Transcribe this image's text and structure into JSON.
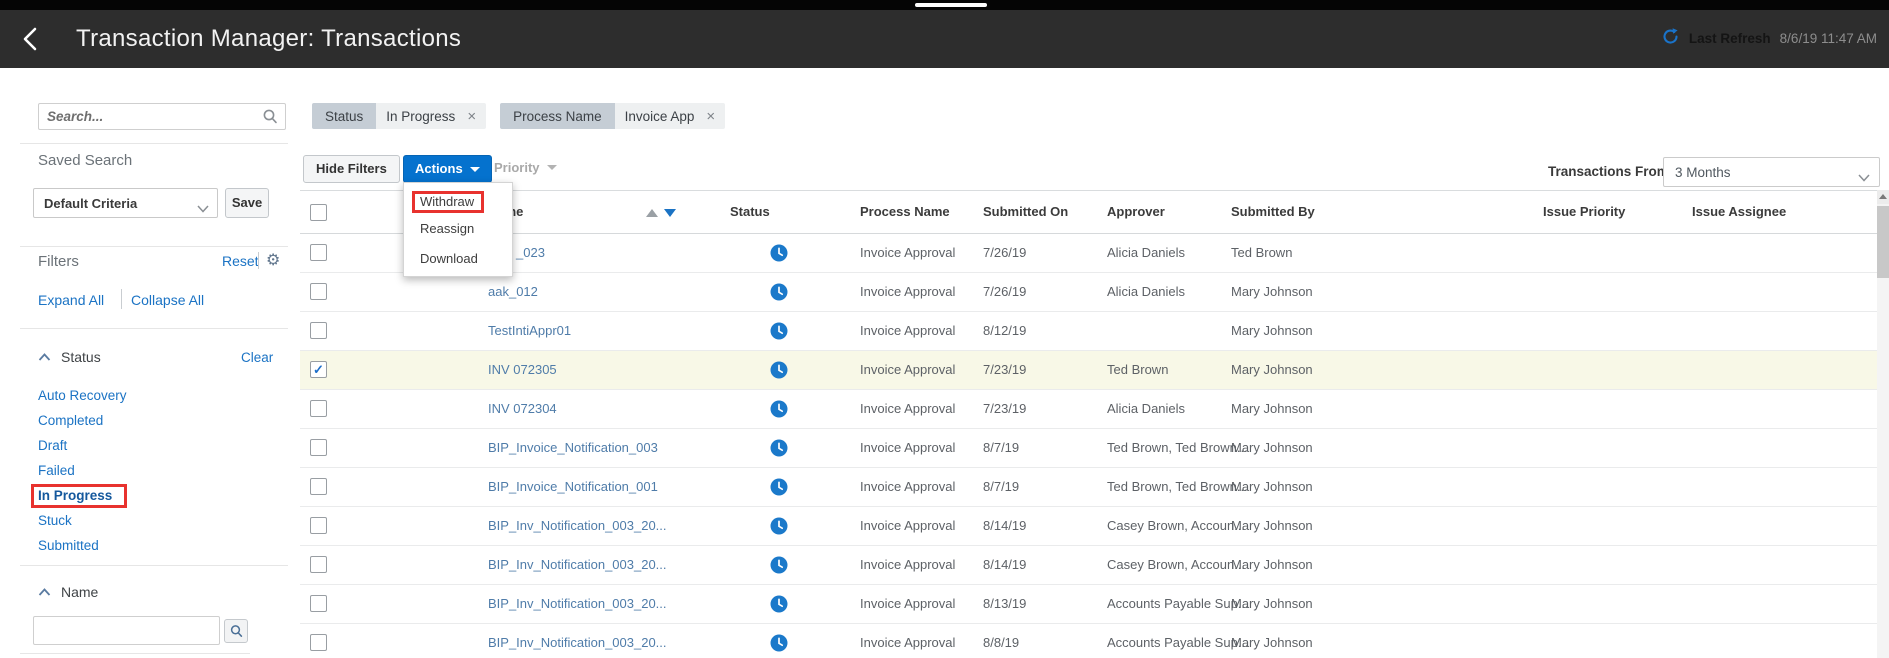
{
  "header": {
    "title": "Transaction Manager: Transactions",
    "last_refresh_label": "Last Refresh",
    "last_refresh_value": "8/6/19 11:47 AM"
  },
  "sidebar": {
    "search_placeholder": "Search...",
    "saved_search_label": "Saved Search",
    "saved_search_value": "Default Criteria",
    "save_button": "Save",
    "filters_label": "Filters",
    "reset_link": "Reset",
    "expand_all": "Expand All",
    "collapse_all": "Collapse All",
    "status_section": {
      "title": "Status",
      "clear_link": "Clear",
      "items": [
        {
          "label": "Auto Recovery",
          "annotated": false
        },
        {
          "label": "Completed",
          "annotated": false
        },
        {
          "label": "Draft",
          "annotated": false
        },
        {
          "label": "Failed",
          "annotated": false
        },
        {
          "label": "In Progress",
          "annotated": true
        },
        {
          "label": "Stuck",
          "annotated": false
        },
        {
          "label": "Submitted",
          "annotated": false
        }
      ]
    },
    "name_section": {
      "title": "Name",
      "input_value": ""
    }
  },
  "filter_chips": [
    {
      "field": "Status",
      "value": "In Progress"
    },
    {
      "field": "Process Name",
      "value": "Invoice App"
    }
  ],
  "toolbar": {
    "hide_filters": "Hide Filters",
    "actions": "Actions",
    "priority": "Priority",
    "transactions_from_label": "Transactions From",
    "transactions_from_value": "3 Months"
  },
  "actions_menu": {
    "items": [
      {
        "label": "Withdraw",
        "annotated": true
      },
      {
        "label": "Reassign",
        "annotated": false
      },
      {
        "label": "Download",
        "annotated": false
      }
    ]
  },
  "table": {
    "columns": [
      "Name",
      "Status",
      "Process Name",
      "Submitted On",
      "Approver",
      "Submitted By",
      "Issue Priority",
      "Issue Assignee"
    ],
    "rows": [
      {
        "name": "_023",
        "name_partial": true,
        "status": "In Progress",
        "process": "Invoice Approval",
        "submitted_on": "7/26/19",
        "approver": "Alicia Daniels",
        "submitted_by": "Ted Brown",
        "issue_priority": "",
        "issue_assignee": "",
        "checked": false,
        "selected": false
      },
      {
        "name": "aak_012",
        "name_partial": false,
        "status": "In Progress",
        "process": "Invoice Approval",
        "submitted_on": "7/26/19",
        "approver": "Alicia Daniels",
        "submitted_by": "Mary Johnson",
        "issue_priority": "",
        "issue_assignee": "",
        "checked": false,
        "selected": false
      },
      {
        "name": "TestIntiAppr01",
        "name_partial": false,
        "status": "In Progress",
        "process": "Invoice Approval",
        "submitted_on": "8/12/19",
        "approver": "",
        "submitted_by": "Mary Johnson",
        "issue_priority": "",
        "issue_assignee": "",
        "checked": false,
        "selected": false
      },
      {
        "name": "INV 072305",
        "name_partial": false,
        "status": "In Progress",
        "process": "Invoice Approval",
        "submitted_on": "7/23/19",
        "approver": "Ted Brown",
        "submitted_by": "Mary Johnson",
        "issue_priority": "",
        "issue_assignee": "",
        "checked": true,
        "selected": true
      },
      {
        "name": "INV 072304",
        "name_partial": false,
        "status": "In Progress",
        "process": "Invoice Approval",
        "submitted_on": "7/23/19",
        "approver": "Alicia Daniels",
        "submitted_by": "Mary Johnson",
        "issue_priority": "",
        "issue_assignee": "",
        "checked": false,
        "selected": false
      },
      {
        "name": "BIP_Invoice_Notification_003",
        "name_partial": false,
        "status": "In Progress",
        "process": "Invoice Approval",
        "submitted_on": "8/7/19",
        "approver": "Ted Brown, Ted Brown...",
        "submitted_by": "Mary Johnson",
        "issue_priority": "",
        "issue_assignee": "",
        "checked": false,
        "selected": false
      },
      {
        "name": "BIP_Invoice_Notification_001",
        "name_partial": false,
        "status": "In Progress",
        "process": "Invoice Approval",
        "submitted_on": "8/7/19",
        "approver": "Ted Brown, Ted Brown...",
        "submitted_by": "Mary Johnson",
        "issue_priority": "",
        "issue_assignee": "",
        "checked": false,
        "selected": false
      },
      {
        "name": "BIP_Inv_Notification_003_20...",
        "name_partial": false,
        "status": "In Progress",
        "process": "Invoice Approval",
        "submitted_on": "8/14/19",
        "approver": "Casey Brown, Accoun...",
        "submitted_by": "Mary Johnson",
        "issue_priority": "",
        "issue_assignee": "",
        "checked": false,
        "selected": false
      },
      {
        "name": "BIP_Inv_Notification_003_20...",
        "name_partial": false,
        "status": "In Progress",
        "process": "Invoice Approval",
        "submitted_on": "8/14/19",
        "approver": "Casey Brown, Accoun...",
        "submitted_by": "Mary Johnson",
        "issue_priority": "",
        "issue_assignee": "",
        "checked": false,
        "selected": false
      },
      {
        "name": "BIP_Inv_Notification_003_20...",
        "name_partial": false,
        "status": "In Progress",
        "process": "Invoice Approval",
        "submitted_on": "8/13/19",
        "approver": "Accounts Payable Sup...",
        "submitted_by": "Mary Johnson",
        "issue_priority": "",
        "issue_assignee": "",
        "checked": false,
        "selected": false
      },
      {
        "name": "BIP_Inv_Notification_003_20...",
        "name_partial": false,
        "status": "In Progress",
        "process": "Invoice Approval",
        "submitted_on": "8/8/19",
        "approver": "Accounts Payable Sup...",
        "submitted_by": "Mary Johnson",
        "issue_priority": "",
        "issue_assignee": "",
        "checked": false,
        "selected": false
      }
    ]
  },
  "icons": {
    "check": "✓",
    "close": "×",
    "gear": "⚙"
  },
  "colors": {
    "accent_blue": "#0572ce",
    "link_blue": "#1b73c4",
    "table_link": "#4f7ca9",
    "annotation_red": "#e8322e",
    "selected_row": "#f8f8e7",
    "header_dark": "#2d2d2d",
    "status_icon": "#1b79ca"
  }
}
